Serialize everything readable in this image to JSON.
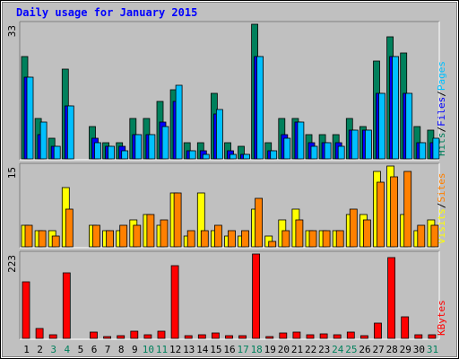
{
  "chart_data": {
    "type": "bar",
    "title": "Daily usage for January 2015",
    "days": [
      "1",
      "2",
      "3",
      "4",
      "5",
      "6",
      "7",
      "8",
      "9",
      "10",
      "11",
      "12",
      "13",
      "14",
      "15",
      "16",
      "17",
      "18",
      "19",
      "20",
      "21",
      "22",
      "23",
      "24",
      "25",
      "26",
      "27",
      "28",
      "29",
      "30",
      "31"
    ],
    "weekend_days": [
      "3",
      "4",
      "10",
      "11",
      "17",
      "18",
      "24",
      "25",
      "31"
    ],
    "panels": [
      {
        "id": "hits",
        "max_label": "33",
        "ymax": 33,
        "labels": [
          {
            "text": "Hits",
            "color": "#00805c"
          },
          {
            "text": "Files",
            "color": "#0000ff"
          },
          {
            "text": "Pages",
            "color": "#00c0ff"
          }
        ],
        "series": [
          {
            "key": "hits",
            "color": "#00805c",
            "values": [
              25,
              10,
              5,
              22,
              0,
              8,
              4,
              4,
              10,
              10,
              14,
              17,
              4,
              4,
              16,
              4,
              3,
              33,
              4,
              10,
              10,
              6,
              6,
              6,
              10,
              8,
              24,
              30,
              26,
              8,
              7
            ]
          },
          {
            "key": "files",
            "color": "#0000ff",
            "values": [
              20,
              6,
              3,
              13,
              0,
              5,
              3,
              3,
              6,
              6,
              9,
              14,
              2,
              2,
              11,
              2,
              1,
              25,
              2,
              6,
              9,
              4,
              4,
              4,
              7,
              7,
              16,
              25,
              16,
              4,
              4
            ]
          },
          {
            "key": "pages",
            "color": "#00c0ff",
            "values": [
              20,
              9,
              3,
              13,
              0,
              4,
              3,
              2,
              6,
              6,
              8,
              18,
              2,
              1,
              12,
              1,
              1,
              25,
              2,
              5,
              9,
              3,
              4,
              3,
              7,
              7,
              16,
              25,
              16,
              4,
              5
            ]
          }
        ]
      },
      {
        "id": "visits",
        "max_label": "15",
        "ymax": 15,
        "labels": [
          {
            "text": "Visits",
            "color": "#ffff00"
          },
          {
            "text": "Sites",
            "color": "#ff8000"
          }
        ],
        "series": [
          {
            "key": "visits",
            "color": "#ffff00",
            "values": [
              4,
              3,
              3,
              11,
              0,
              4,
              3,
              3,
              5,
              6,
              4,
              10,
              2,
              10,
              3,
              2,
              2,
              7,
              2,
              5,
              7,
              3,
              3,
              3,
              6,
              6,
              14,
              15,
              6,
              3,
              5
            ]
          },
          {
            "key": "sites",
            "color": "#ff8000",
            "values": [
              4,
              3,
              2,
              7,
              0,
              4,
              3,
              4,
              4,
              6,
              5,
              10,
              3,
              3,
              4,
              3,
              3,
              9,
              1,
              3,
              5,
              3,
              3,
              3,
              7,
              5,
              12,
              13,
              14,
              4,
              4
            ]
          }
        ]
      },
      {
        "id": "kbytes",
        "max_label": "223",
        "ymax": 223,
        "labels": [
          {
            "text": "KBytes",
            "color": "#ff0000"
          }
        ],
        "series": [
          {
            "key": "kbytes",
            "color": "#ff0000",
            "values": [
              150,
              25,
              10,
              172,
              0,
              17,
              5,
              6,
              18,
              10,
              18,
              191,
              8,
              9,
              14,
              6,
              6,
              223,
              5,
              14,
              16,
              10,
              12,
              10,
              17,
              8,
              40,
              213,
              56,
              10,
              9
            ]
          }
        ]
      }
    ]
  }
}
